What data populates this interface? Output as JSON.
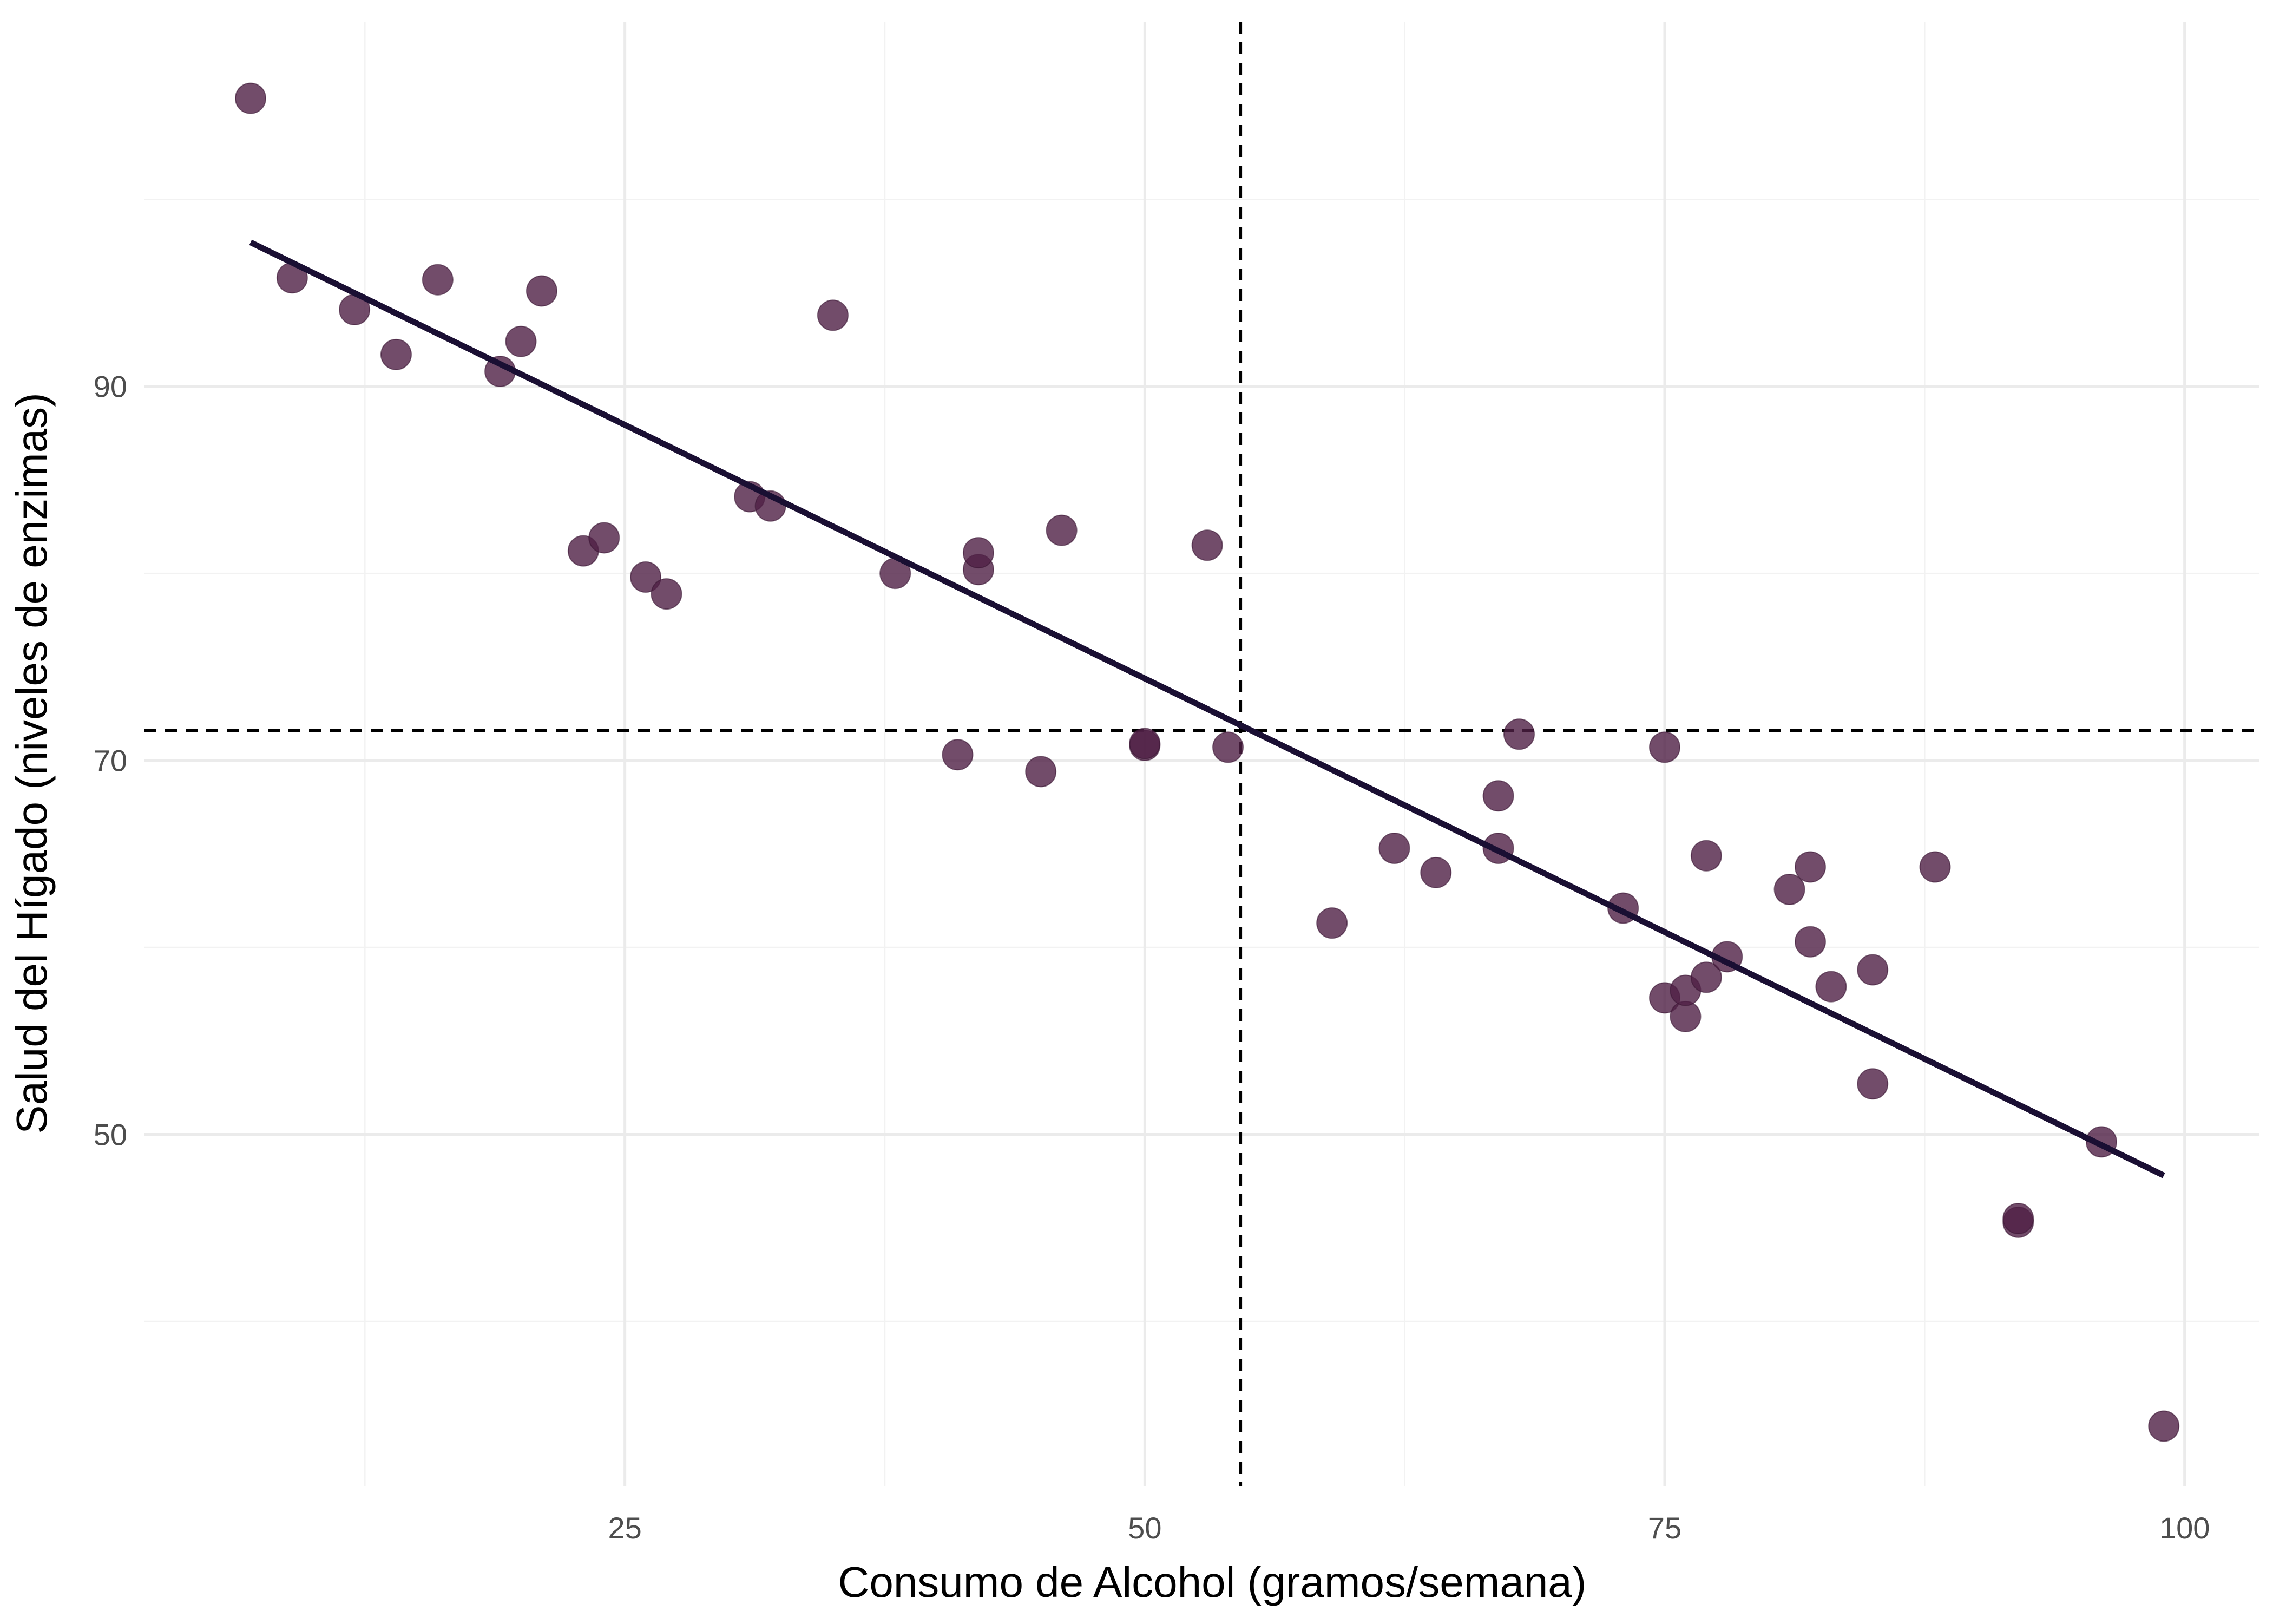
{
  "chart_data": {
    "type": "scatter",
    "xlabel": "Consumo de Alcohol (gramos/semana)",
    "ylabel": "Salud del Hígado (niveles de enzimas)",
    "xlim": [
      1.9,
      103.6
    ],
    "ylim": [
      31.2,
      109.5
    ],
    "x_ticks": [
      25,
      50,
      75,
      100
    ],
    "x_minor": [
      12.5,
      37.5,
      62.5,
      87.5
    ],
    "y_ticks": [
      50,
      70,
      90
    ],
    "y_minor": [
      40,
      60,
      80,
      100
    ],
    "grid": true,
    "legend": "none",
    "reference_lines": {
      "x_mean": 54.6,
      "y_mean": 71.6
    },
    "regression_line": {
      "x": [
        7,
        99
      ],
      "y": [
        97.7,
        47.8
      ]
    },
    "points": {
      "x": [
        7,
        9,
        12,
        14,
        16,
        19,
        20,
        21,
        23,
        24,
        26,
        27,
        31,
        32,
        35,
        38,
        41,
        42,
        42,
        45,
        46,
        50,
        50,
        53,
        54,
        59,
        62,
        64,
        67,
        67,
        68,
        73,
        75,
        75,
        76,
        76,
        77,
        77,
        78,
        81,
        82,
        82,
        83,
        85,
        85,
        88,
        92,
        92,
        96,
        99
      ],
      "y": [
        105.4,
        95.8,
        94.1,
        91.7,
        95.7,
        90.8,
        92.4,
        95.1,
        81.2,
        81.9,
        79.8,
        78.9,
        84.1,
        83.6,
        93.8,
        80.0,
        70.3,
        80.2,
        81.1,
        69.4,
        82.3,
        70.8,
        70.9,
        81.5,
        70.7,
        61.3,
        65.3,
        64.0,
        65.3,
        68.1,
        71.4,
        62.1,
        70.7,
        57.3,
        56.3,
        57.7,
        58.4,
        64.9,
        59.5,
        63.1,
        64.3,
        60.3,
        57.9,
        58.8,
        52.7,
        64.3,
        45.3,
        45.5,
        49.6,
        34.4
      ]
    },
    "colors": {
      "point": "#4f1f45",
      "line": "#1a0f33",
      "reference": "#000000",
      "grid": "#ebebeb"
    }
  }
}
